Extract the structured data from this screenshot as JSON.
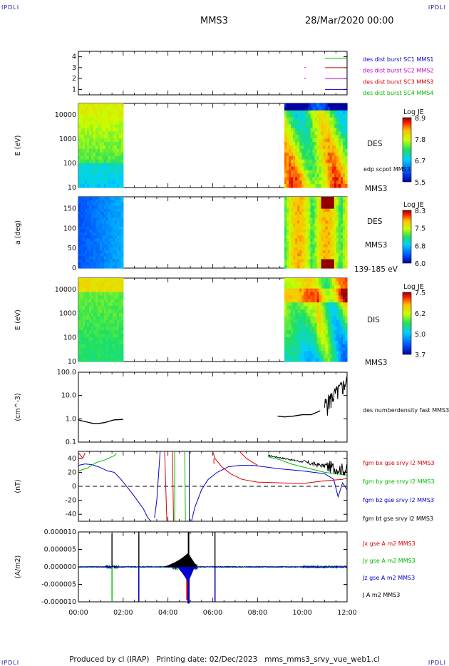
{
  "header": {
    "corner_label": "IPDLI",
    "spacecraft": "MMS3",
    "timestamp": "28/Mar/2020 00:00"
  },
  "footer": {
    "text": "Produced by cl (IRAP)   Printing date: 02/Dec/2023   mms_mms3_srvy_vue_web1.cl"
  },
  "time_axis": {
    "ticks": [
      "00:00",
      "02:00",
      "04:00",
      "06:00",
      "08:00",
      "10:00",
      "12:00"
    ],
    "range_hours": [
      0,
      12
    ]
  },
  "chart_data": [
    {
      "type": "scatter",
      "panel": "burst",
      "yticks": [
        "4",
        "3",
        "2",
        "1"
      ],
      "series": [
        {
          "name": "des dist burst SC1 MMS1",
          "color": "#0000cc",
          "line_color": "#00bb00"
        },
        {
          "name": "des dist burst SC2 MMS2",
          "color": "#cc00cc",
          "line_color": "#dd0000"
        },
        {
          "name": "des dist burst SC3 MMS3",
          "color": "#dd0000",
          "line_color": "#dd00dd"
        },
        {
          "name": "des dist burst SC4 MMS4",
          "color": "#00bb00",
          "line_color": "#0000cc"
        }
      ],
      "points": [
        {
          "x": 10.1,
          "y": 3
        },
        {
          "x": 10.1,
          "y": 2
        }
      ]
    },
    {
      "type": "heatmap",
      "panel": "des-energy",
      "ylabel": "E (eV)",
      "yticks": [
        "10000",
        "1000",
        "100",
        "10"
      ],
      "label": "DES",
      "sublabel_top": "edp scpot MMS3",
      "sublabel_bottom": "MMS3",
      "colorbar": {
        "title": "Log JE",
        "ticks": [
          "8.9",
          "7.8",
          "6.7",
          "5.5"
        ],
        "range": [
          5.5,
          8.9
        ]
      },
      "coverage_hours": [
        [
          0,
          2
        ],
        [
          9.2,
          12
        ]
      ]
    },
    {
      "type": "heatmap",
      "panel": "des-pitch",
      "ylabel": "a (deg)",
      "yticks": [
        "150",
        "100",
        "50",
        "0"
      ],
      "label": "DES",
      "sublabel_top": "MMS3",
      "sublabel_bottom": "139-185 eV",
      "colorbar": {
        "title": "Log JE",
        "ticks": [
          "8.3",
          "7.5",
          "6.8",
          "6.0"
        ],
        "range": [
          6.0,
          8.3
        ]
      },
      "coverage_hours": [
        [
          0,
          2
        ],
        [
          9.2,
          12
        ]
      ]
    },
    {
      "type": "heatmap",
      "panel": "dis-energy",
      "ylabel": "E (eV)",
      "yticks": [
        "10000",
        "1000",
        "100",
        "10"
      ],
      "label": "DIS",
      "sublabel_bottom": "MMS3",
      "colorbar": {
        "title": "Log JE",
        "ticks": [
          "7.5",
          "6.2",
          "5.0",
          "3.7"
        ],
        "range": [
          3.7,
          7.5
        ]
      },
      "coverage_hours": [
        [
          0,
          2
        ],
        [
          9.2,
          12
        ]
      ]
    },
    {
      "type": "line",
      "panel": "density",
      "ylabel": "(cm^-3)",
      "yticks": [
        "100.0",
        "10.0",
        "1.0",
        "0.1"
      ],
      "yscale": "log",
      "ylim": [
        0.1,
        100
      ],
      "series": [
        {
          "name": "des numberdensity fast MMS3",
          "color": "#000000",
          "x": [
            0.0,
            0.2,
            0.4,
            0.6,
            0.8,
            1.0,
            1.2,
            1.4,
            1.6,
            1.8,
            2.0,
            8.9,
            9.2,
            9.6,
            10.0,
            10.4,
            10.8,
            11.0,
            11.2,
            11.4,
            11.6,
            11.8,
            12.0
          ],
          "y": [
            0.9,
            0.8,
            0.72,
            0.65,
            0.62,
            0.65,
            0.7,
            0.8,
            0.9,
            0.92,
            0.95,
            1.3,
            1.2,
            1.3,
            1.5,
            1.5,
            2.2,
            3.0,
            6,
            12,
            15,
            20,
            25
          ]
        }
      ]
    },
    {
      "type": "line",
      "panel": "magnetic-field",
      "ylabel": "(nT)",
      "yticks": [
        "40",
        "20",
        "0",
        "-20",
        "-40"
      ],
      "ylim": [
        -50,
        50
      ],
      "series": [
        {
          "name": "fgm bx gse srvy l2 MMS3",
          "color": "#dd0000"
        },
        {
          "name": "fgm by gse srvy l2 MMS3",
          "color": "#00bb00"
        },
        {
          "name": "fgm bz gse srvy l2 MMS3",
          "color": "#0000cc"
        },
        {
          "name": "fgm bt gse srvy l2 MMS3",
          "color": "#000000"
        }
      ]
    },
    {
      "type": "line",
      "panel": "current-density",
      "ylabel": "(A/m2)",
      "yticks": [
        "0.000010",
        "0.000005",
        "0.000000",
        "-0.000005",
        "-0.000010"
      ],
      "ylim": [
        -1e-05,
        1e-05
      ],
      "series": [
        {
          "name": "Jx gse A m2 MMS3",
          "color": "#dd0000"
        },
        {
          "name": "Jy gse A m2 MMS3",
          "color": "#00bb00"
        },
        {
          "name": "Jz gse A m2 MMS3",
          "color": "#0000cc"
        },
        {
          "name": "J A m2 MMS3",
          "color": "#000000"
        }
      ]
    }
  ]
}
